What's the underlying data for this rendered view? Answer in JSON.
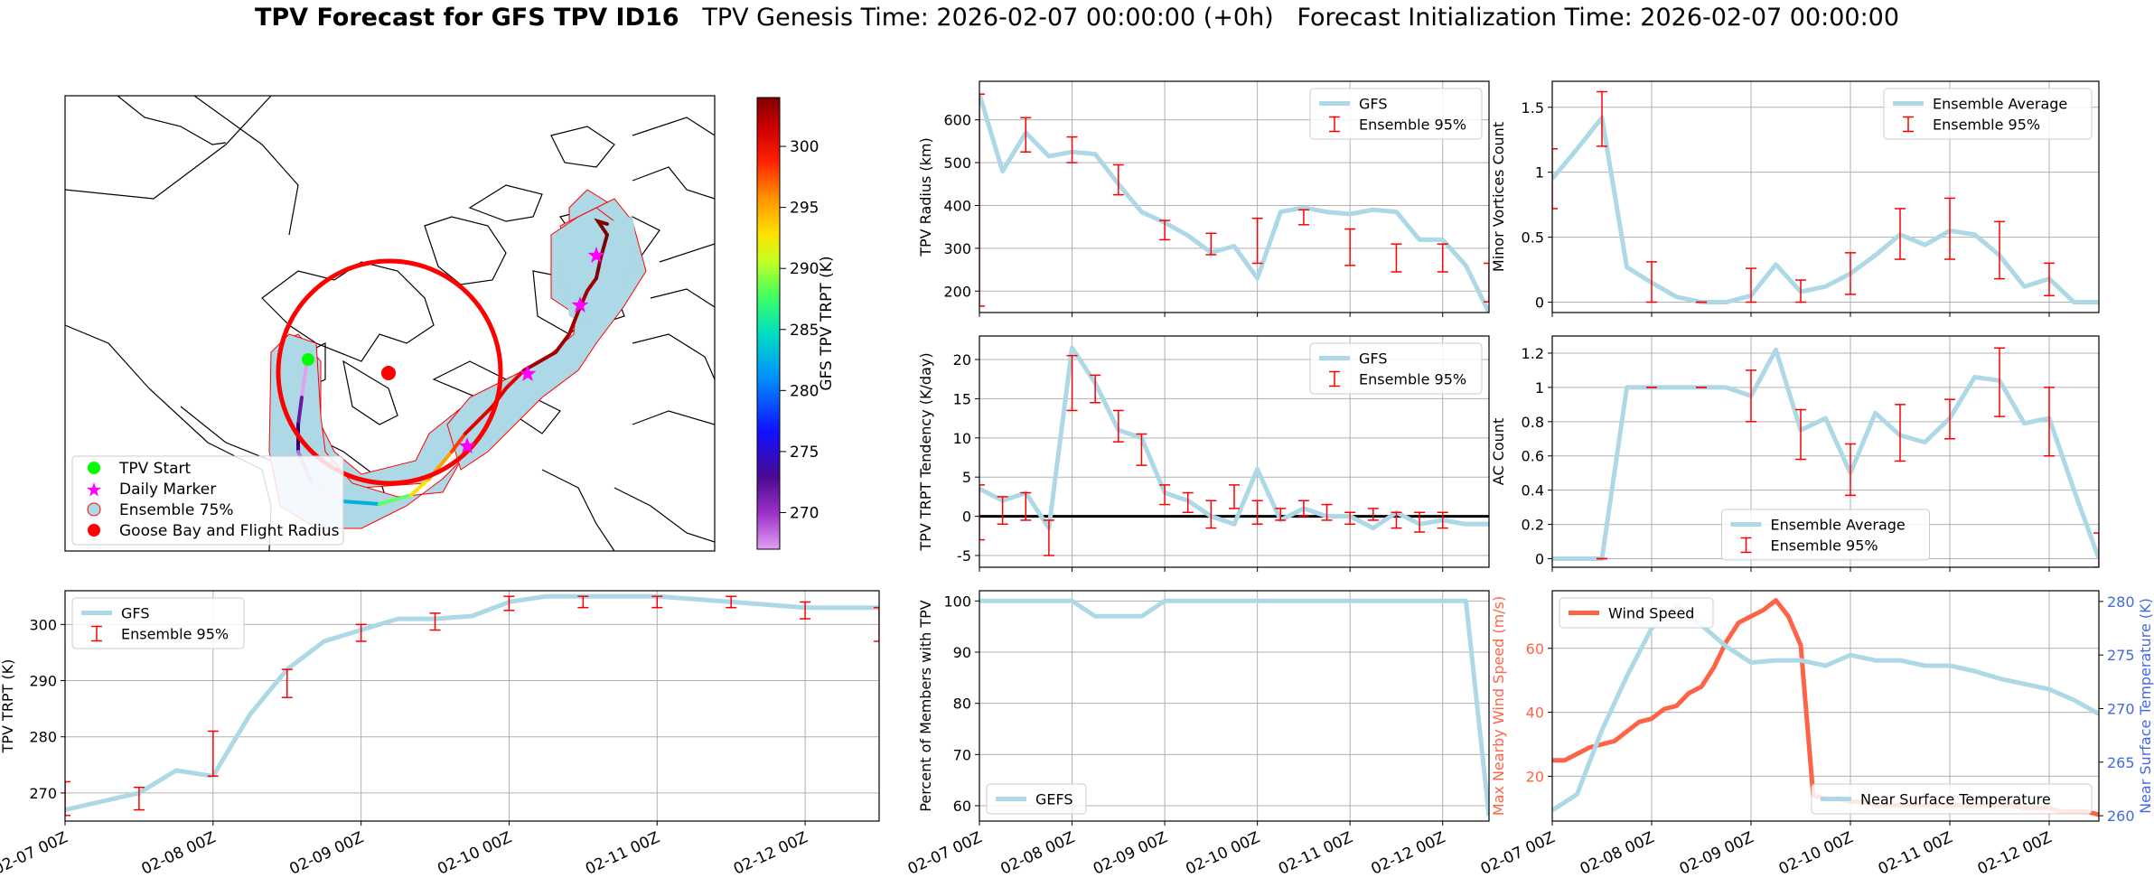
{
  "title": {
    "bold": "TPV Forecast for GFS TPV ID16",
    "rest": "   TPV Genesis Time: 2026-02-07 00:00:00 (+0h)   Forecast Initialization Time: 2026-02-07 00:00:00"
  },
  "colors": {
    "line": "#add8e6",
    "errorbar": "#ff0000",
    "wind": "#ff6347",
    "temp_axis": "#4169e1",
    "land_tint": "#add8e6",
    "flight_circle": "#ff0000"
  },
  "map": {
    "legend": [
      {
        "label": "TPV Start",
        "marker": "circle",
        "color": "#00ff00"
      },
      {
        "label": "Daily Marker",
        "marker": "star",
        "color": "#ff00ff"
      },
      {
        "label": "Ensemble 75%",
        "marker": "circle-outline",
        "color": "#add8e6"
      },
      {
        "label": "Goose Bay and Flight Radius",
        "marker": "circle",
        "color": "#ff0000"
      }
    ],
    "colorbar": {
      "label": "GFS TPV TRPT (K)",
      "ticks": [
        270,
        275,
        280,
        285,
        290,
        295,
        300
      ],
      "range": [
        267,
        304
      ],
      "colormap": "rainbow"
    }
  },
  "x_ticks": [
    "02-07 00Z",
    "02-08 00Z",
    "02-09 00Z",
    "02-10 00Z",
    "02-11 00Z",
    "02-12 00Z"
  ],
  "chart_data": [
    {
      "id": "radius",
      "type": "line",
      "ylabel": "TPV Radius (km)",
      "ylim": [
        150,
        690
      ],
      "yticks": [
        200,
        300,
        400,
        500,
        600
      ],
      "legend": [
        "GFS",
        "Ensemble 95%"
      ],
      "legend_loc": "upper right",
      "series": [
        {
          "name": "GFS",
          "x": [
            0,
            0.25,
            0.5,
            0.75,
            1,
            1.25,
            1.5,
            1.75,
            2,
            2.25,
            2.5,
            2.75,
            3,
            3.25,
            3.5,
            3.75,
            4,
            4.25,
            4.5,
            4.75,
            5,
            5.25,
            5.5
          ],
          "y": [
            660,
            480,
            570,
            515,
            525,
            520,
            450,
            385,
            360,
            330,
            290,
            305,
            230,
            385,
            395,
            385,
            380,
            390,
            385,
            320,
            320,
            260,
            150
          ]
        }
      ],
      "errorbars": [
        {
          "x": 0,
          "lo": 165,
          "hi": 660
        },
        {
          "x": 0.5,
          "lo": 525,
          "hi": 605
        },
        {
          "x": 1,
          "lo": 500,
          "hi": 560
        },
        {
          "x": 1.5,
          "lo": 425,
          "hi": 495
        },
        {
          "x": 2,
          "lo": 320,
          "hi": 365
        },
        {
          "x": 2.5,
          "lo": 285,
          "hi": 335
        },
        {
          "x": 3,
          "lo": 265,
          "hi": 370
        },
        {
          "x": 3.5,
          "lo": 355,
          "hi": 390
        },
        {
          "x": 4,
          "lo": 260,
          "hi": 345
        },
        {
          "x": 4.5,
          "lo": 245,
          "hi": 310
        },
        {
          "x": 5,
          "lo": 245,
          "hi": 310
        },
        {
          "x": 5.5,
          "lo": 175,
          "hi": 265
        }
      ]
    },
    {
      "id": "minor",
      "type": "line",
      "ylabel": "Minor Vortices Count",
      "ylim": [
        -0.08,
        1.7
      ],
      "yticks": [
        0.0,
        0.5,
        1.0,
        1.5
      ],
      "legend": [
        "Ensemble Average",
        "Ensemble 95%"
      ],
      "legend_loc": "upper right",
      "series": [
        {
          "name": "Ensemble Average",
          "x": [
            0,
            0.25,
            0.5,
            0.75,
            1,
            1.25,
            1.5,
            1.75,
            2,
            2.25,
            2.5,
            2.75,
            3,
            3.25,
            3.5,
            3.75,
            4,
            4.25,
            4.5,
            4.75,
            5,
            5.25,
            5.5
          ],
          "y": [
            0.95,
            1.18,
            1.42,
            0.27,
            0.15,
            0.04,
            0.0,
            0.0,
            0.05,
            0.29,
            0.08,
            0.12,
            0.22,
            0.36,
            0.52,
            0.44,
            0.55,
            0.52,
            0.36,
            0.12,
            0.18,
            0.0,
            0.0
          ]
        }
      ],
      "errorbars": [
        {
          "x": 0,
          "lo": 0.72,
          "hi": 1.18
        },
        {
          "x": 0.5,
          "lo": 1.2,
          "hi": 1.62
        },
        {
          "x": 1,
          "lo": 0.0,
          "hi": 0.31
        },
        {
          "x": 1.5,
          "lo": 0.0,
          "hi": 0.0
        },
        {
          "x": 2,
          "lo": 0.0,
          "hi": 0.26
        },
        {
          "x": 2.5,
          "lo": 0.0,
          "hi": 0.17
        },
        {
          "x": 3,
          "lo": 0.06,
          "hi": 0.38
        },
        {
          "x": 3.5,
          "lo": 0.33,
          "hi": 0.72
        },
        {
          "x": 4,
          "lo": 0.33,
          "hi": 0.8
        },
        {
          "x": 4.5,
          "lo": 0.18,
          "hi": 0.62
        },
        {
          "x": 5,
          "lo": 0.05,
          "hi": 0.3
        }
      ]
    },
    {
      "id": "tendency",
      "type": "line",
      "ylabel": "TPV TRPT Tendency (K/day)",
      "ylim": [
        -6.5,
        23
      ],
      "yticks": [
        -5,
        0,
        5,
        10,
        15,
        20
      ],
      "legend": [
        "GFS",
        "Ensemble 95%"
      ],
      "legend_loc": "upper right",
      "zero_line": true,
      "series": [
        {
          "name": "GFS",
          "x": [
            0,
            0.25,
            0.5,
            0.75,
            1,
            1.25,
            1.5,
            1.75,
            2,
            2.25,
            2.5,
            2.75,
            3,
            3.25,
            3.5,
            3.75,
            4,
            4.25,
            4.5,
            4.75,
            5,
            5.25,
            5.5
          ],
          "y": [
            3.5,
            2,
            3,
            -1.5,
            21.5,
            17,
            11,
            10,
            3,
            2,
            0,
            -1,
            6,
            -0.5,
            1,
            0,
            0,
            -1.5,
            0.5,
            -1,
            -0.5,
            -1,
            -1
          ]
        }
      ],
      "errorbars": [
        {
          "x": 0,
          "lo": -3,
          "hi": 4
        },
        {
          "x": 0.25,
          "lo": -1,
          "hi": 2.5
        },
        {
          "x": 0.5,
          "lo": -0.5,
          "hi": 3
        },
        {
          "x": 0.75,
          "lo": -5,
          "hi": -0.5
        },
        {
          "x": 1,
          "lo": 13.5,
          "hi": 20.5
        },
        {
          "x": 1.25,
          "lo": 14.5,
          "hi": 18
        },
        {
          "x": 1.5,
          "lo": 9.5,
          "hi": 13.5
        },
        {
          "x": 1.75,
          "lo": 6.5,
          "hi": 10.5
        },
        {
          "x": 2,
          "lo": 1.5,
          "hi": 4
        },
        {
          "x": 2.25,
          "lo": 0.5,
          "hi": 3
        },
        {
          "x": 2.5,
          "lo": -1.5,
          "hi": 2
        },
        {
          "x": 2.75,
          "lo": 1,
          "hi": 4
        },
        {
          "x": 3,
          "lo": -1,
          "hi": 2
        },
        {
          "x": 3.25,
          "lo": -0.5,
          "hi": 1
        },
        {
          "x": 3.5,
          "lo": 0,
          "hi": 2
        },
        {
          "x": 3.75,
          "lo": -0.5,
          "hi": 1.5
        },
        {
          "x": 4,
          "lo": -1,
          "hi": 0.5
        },
        {
          "x": 4.25,
          "lo": -0.5,
          "hi": 1
        },
        {
          "x": 4.5,
          "lo": -1.5,
          "hi": 0.5
        },
        {
          "x": 4.75,
          "lo": -2,
          "hi": 0.5
        },
        {
          "x": 5,
          "lo": -1.5,
          "hi": 0.5
        }
      ]
    },
    {
      "id": "ac",
      "type": "line",
      "ylabel": "AC Count",
      "ylim": [
        -0.05,
        1.3
      ],
      "yticks": [
        0.0,
        0.2,
        0.4,
        0.6,
        0.8,
        1.0,
        1.2
      ],
      "legend": [
        "Ensemble Average",
        "Ensemble 95%"
      ],
      "legend_loc": "lower center",
      "series": [
        {
          "name": "Ensemble Average",
          "x": [
            0,
            0.25,
            0.5,
            0.75,
            1,
            1.25,
            1.5,
            1.75,
            2,
            2.25,
            2.5,
            2.75,
            3,
            3.25,
            3.5,
            3.75,
            4,
            4.25,
            4.5,
            4.75,
            5,
            5.25,
            5.5
          ],
          "y": [
            0,
            0,
            0,
            1,
            1,
            1,
            1,
            1,
            0.95,
            1.22,
            0.75,
            0.82,
            0.5,
            0.85,
            0.72,
            0.68,
            0.82,
            1.06,
            1.04,
            0.79,
            0.82,
            0.4,
            0.0
          ]
        }
      ],
      "errorbars": [
        {
          "x": 0.5,
          "lo": 0,
          "hi": 0
        },
        {
          "x": 1,
          "lo": 1,
          "hi": 1
        },
        {
          "x": 1.5,
          "lo": 1,
          "hi": 1
        },
        {
          "x": 2,
          "lo": 0.8,
          "hi": 1.1
        },
        {
          "x": 2.5,
          "lo": 0.58,
          "hi": 0.87
        },
        {
          "x": 3,
          "lo": 0.37,
          "hi": 0.67
        },
        {
          "x": 3.5,
          "lo": 0.57,
          "hi": 0.9
        },
        {
          "x": 4,
          "lo": 0.7,
          "hi": 0.93
        },
        {
          "x": 4.5,
          "lo": 0.83,
          "hi": 1.23
        },
        {
          "x": 5,
          "lo": 0.6,
          "hi": 1.0
        },
        {
          "x": 5.5,
          "lo": -0.05,
          "hi": 0.15
        }
      ]
    },
    {
      "id": "trpt",
      "type": "line",
      "ylabel": "TPV TRPT (K)",
      "ylim": [
        265,
        306
      ],
      "yticks": [
        270,
        280,
        290,
        300
      ],
      "legend": [
        "GFS",
        "Ensemble 95%"
      ],
      "legend_loc": "upper left",
      "series": [
        {
          "name": "GFS",
          "x": [
            0,
            0.25,
            0.5,
            0.75,
            1,
            1.25,
            1.5,
            1.75,
            2,
            2.25,
            2.5,
            2.75,
            3,
            3.25,
            3.5,
            3.75,
            4,
            4.25,
            4.5,
            4.75,
            5,
            5.25,
            5.5
          ],
          "y": [
            267,
            268.5,
            270,
            274,
            273,
            284,
            292,
            297,
            299,
            301,
            301,
            301.5,
            304,
            305,
            305,
            305,
            305,
            304.5,
            304,
            303.5,
            303,
            303,
            303
          ]
        }
      ],
      "errorbars": [
        {
          "x": 0,
          "lo": 266,
          "hi": 272
        },
        {
          "x": 0.5,
          "lo": 267,
          "hi": 271
        },
        {
          "x": 1,
          "lo": 273,
          "hi": 281
        },
        {
          "x": 1.5,
          "lo": 287,
          "hi": 292
        },
        {
          "x": 2,
          "lo": 297,
          "hi": 300
        },
        {
          "x": 2.5,
          "lo": 299,
          "hi": 302
        },
        {
          "x": 3,
          "lo": 302.5,
          "hi": 305
        },
        {
          "x": 3.5,
          "lo": 303,
          "hi": 305
        },
        {
          "x": 4,
          "lo": 303,
          "hi": 305
        },
        {
          "x": 4.5,
          "lo": 303,
          "hi": 305
        },
        {
          "x": 5,
          "lo": 301,
          "hi": 304
        },
        {
          "x": 5.5,
          "lo": 297,
          "hi": 303
        }
      ]
    },
    {
      "id": "percent",
      "type": "line",
      "ylabel": "Percent of Members with TPV",
      "ylim": [
        57,
        102
      ],
      "yticks": [
        60,
        70,
        80,
        90,
        100
      ],
      "legend": [
        "GEFS"
      ],
      "legend_loc": "lower left",
      "series": [
        {
          "name": "GEFS",
          "x": [
            0,
            0.25,
            0.5,
            0.75,
            1,
            1.25,
            1.5,
            1.75,
            2,
            2.25,
            2.5,
            2.75,
            3,
            3.25,
            3.5,
            3.75,
            4,
            4.25,
            4.5,
            4.75,
            5,
            5.25,
            5.5
          ],
          "y": [
            100,
            100,
            100,
            100,
            100,
            97,
            97,
            97,
            100,
            100,
            100,
            100,
            100,
            100,
            100,
            100,
            100,
            100,
            100,
            100,
            100,
            100,
            58
          ]
        }
      ]
    },
    {
      "id": "wind_temp",
      "type": "line",
      "ylabel": "Max Nearby Wind Speed (m/s)",
      "ylim": [
        6,
        78
      ],
      "yticks": [
        20,
        40,
        60
      ],
      "y2label": "Near Surface Temperature (K)",
      "y2lim": [
        259.5,
        281
      ],
      "y2ticks": [
        260,
        265,
        270,
        275,
        280
      ],
      "legend": [
        "Wind Speed"
      ],
      "legend_loc": "upper left",
      "legend2": [
        "Near Surface Temperature"
      ],
      "legend2_loc": "lower right",
      "series": [
        {
          "name": "Wind Speed",
          "axis": "left",
          "x": [
            0,
            0.125,
            0.25,
            0.375,
            0.5,
            0.625,
            0.75,
            0.875,
            1,
            1.125,
            1.25,
            1.375,
            1.5,
            1.625,
            1.75,
            1.875,
            2,
            2.125,
            2.25,
            2.375,
            2.5,
            2.625,
            2.75,
            2.875,
            3,
            3.125,
            3.25,
            3.375,
            3.5,
            3.625,
            3.75,
            3.875,
            4,
            4.125,
            4.25,
            4.375,
            4.5,
            4.625,
            4.75,
            4.875,
            5,
            5.125,
            5.25,
            5.375,
            5.5
          ],
          "y": [
            25,
            25,
            27,
            29,
            30,
            31,
            34,
            37,
            38,
            41,
            42,
            46,
            48,
            54,
            62,
            68,
            70,
            72,
            75,
            70,
            61,
            14,
            13,
            13,
            12,
            12,
            11,
            11,
            11,
            11,
            11,
            11,
            11,
            11,
            11,
            11,
            11,
            11,
            10,
            10,
            10,
            9,
            9,
            9,
            8
          ]
        },
        {
          "name": "Near Surface Temperature",
          "axis": "right",
          "x": [
            0,
            0.25,
            0.5,
            0.75,
            1,
            1.25,
            1.5,
            1.75,
            2,
            2.25,
            2.5,
            2.75,
            3,
            3.25,
            3.5,
            3.75,
            4,
            4.25,
            4.5,
            4.75,
            5,
            5.25,
            5.5
          ],
          "y": [
            260.5,
            262,
            268,
            273,
            277.5,
            279.5,
            277.8,
            275.8,
            274.3,
            274.5,
            274.5,
            274.0,
            275.0,
            274.5,
            274.5,
            274.0,
            274.0,
            273.5,
            272.8,
            272.3,
            271.8,
            270.8,
            269.5
          ]
        }
      ]
    }
  ]
}
